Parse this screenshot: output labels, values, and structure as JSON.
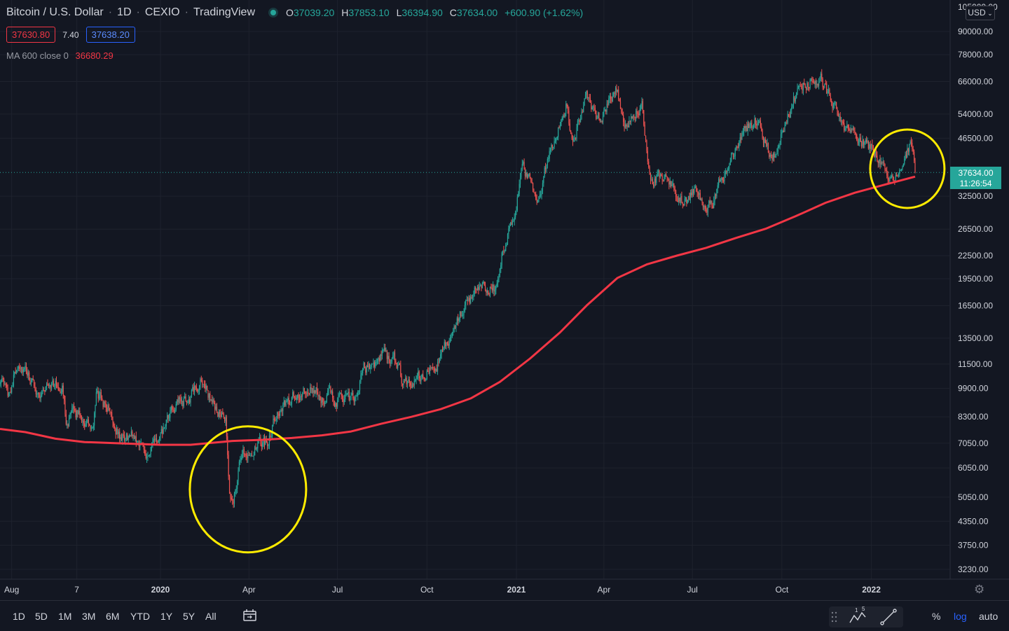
{
  "header": {
    "symbol": "Bitcoin / U.S. Dollar",
    "interval": "1D",
    "exchange": "CEXIO",
    "source": "TradingView",
    "ohlc": {
      "o_label": "O",
      "o": "37039.20",
      "h_label": "H",
      "h": "37853.10",
      "l_label": "L",
      "l": "36394.90",
      "c_label": "C",
      "c": "37634.00",
      "change": "+600.90 (+1.62%)"
    },
    "bid": "37630.80",
    "spread": "7.40",
    "ask": "37638.20",
    "ma_label": "MA 600 close 0",
    "ma_value": "36680.29"
  },
  "currency_button": "USD",
  "last_price": "37634.00",
  "countdown": "11:26:54",
  "price_axis": {
    "top_partial": "105000.00",
    "ticks": [
      90000,
      78000,
      66000,
      54000,
      46500,
      32500,
      26500,
      22500,
      19500,
      16500,
      13500,
      11500,
      9900,
      8300,
      7050,
      6050,
      5050,
      4350,
      3750,
      3230
    ],
    "tick_labels": [
      "90000.00",
      "78000.00",
      "66000.00",
      "54000.00",
      "46500.00",
      "32500.00",
      "26500.00",
      "22500.00",
      "19500.00",
      "16500.00",
      "13500.00",
      "11500.00",
      "9900.00",
      "8300.00",
      "7050.00",
      "6050.00",
      "5050.00",
      "4350.00",
      "3750.00",
      "3230.00"
    ]
  },
  "time_axis": {
    "labels": [
      {
        "text": "Aug",
        "date": "2019-08-01",
        "bold": false
      },
      {
        "text": "7",
        "date": "2019-10-07",
        "bold": false
      },
      {
        "text": "2020",
        "date": "2020-01-01",
        "bold": true
      },
      {
        "text": "Apr",
        "date": "2020-04-01",
        "bold": false
      },
      {
        "text": "Jul",
        "date": "2020-07-01",
        "bold": false
      },
      {
        "text": "Oct",
        "date": "2020-10-01",
        "bold": false
      },
      {
        "text": "2021",
        "date": "2021-01-01",
        "bold": true
      },
      {
        "text": "Apr",
        "date": "2021-04-01",
        "bold": false
      },
      {
        "text": "Jul",
        "date": "2021-07-01",
        "bold": false
      },
      {
        "text": "Oct",
        "date": "2021-10-01",
        "bold": false
      },
      {
        "text": "2022",
        "date": "2022-01-01",
        "bold": true
      }
    ]
  },
  "chart_data": {
    "type": "candlestick",
    "symbol": "BTCUSD",
    "scale": "log",
    "x_range": [
      "2019-07-20",
      "2022-02-15"
    ],
    "ylim": [
      3100,
      105000
    ],
    "price_path": [
      [
        "2019-07-20",
        10500
      ],
      [
        "2019-07-28",
        9500
      ],
      [
        "2019-08-08",
        11800
      ],
      [
        "2019-08-20",
        10300
      ],
      [
        "2019-08-30",
        9600
      ],
      [
        "2019-09-10",
        10300
      ],
      [
        "2019-09-22",
        9900
      ],
      [
        "2019-09-26",
        8200
      ],
      [
        "2019-10-10",
        8500
      ],
      [
        "2019-10-24",
        7500
      ],
      [
        "2019-10-27",
        9500
      ],
      [
        "2019-11-08",
        8800
      ],
      [
        "2019-11-22",
        7200
      ],
      [
        "2019-12-05",
        7400
      ],
      [
        "2019-12-18",
        6700
      ],
      [
        "2020-01-01",
        7200
      ],
      [
        "2020-01-15",
        8800
      ],
      [
        "2020-02-01",
        9400
      ],
      [
        "2020-02-13",
        10400
      ],
      [
        "2020-02-26",
        8800
      ],
      [
        "2020-03-08",
        8000
      ],
      [
        "2020-03-12",
        5000
      ],
      [
        "2020-03-16",
        5000
      ],
      [
        "2020-03-25",
        6700
      ],
      [
        "2020-04-05",
        6800
      ],
      [
        "2020-04-20",
        7100
      ],
      [
        "2020-04-30",
        8800
      ],
      [
        "2020-05-10",
        8800
      ],
      [
        "2020-05-20",
        9500
      ],
      [
        "2020-06-10",
        9700
      ],
      [
        "2020-07-01",
        9200
      ],
      [
        "2020-07-20",
        9200
      ],
      [
        "2020-07-28",
        11000
      ],
      [
        "2020-08-17",
        12200
      ],
      [
        "2020-09-03",
        11500
      ],
      [
        "2020-09-05",
        10200
      ],
      [
        "2020-09-25",
        10700
      ],
      [
        "2020-10-10",
        11300
      ],
      [
        "2020-10-21",
        12900
      ],
      [
        "2020-11-05",
        15500
      ],
      [
        "2020-11-24",
        19000
      ],
      [
        "2020-12-10",
        18400
      ],
      [
        "2020-12-17",
        23000
      ],
      [
        "2020-12-31",
        29000
      ],
      [
        "2021-01-08",
        40000
      ],
      [
        "2021-01-22",
        31000
      ],
      [
        "2021-02-08",
        46000
      ],
      [
        "2021-02-21",
        57000
      ],
      [
        "2021-02-28",
        45000
      ],
      [
        "2021-03-13",
        61000
      ],
      [
        "2021-03-25",
        52000
      ],
      [
        "2021-04-14",
        63500
      ],
      [
        "2021-04-25",
        49000
      ],
      [
        "2021-05-10",
        56500
      ],
      [
        "2021-05-19",
        36000
      ],
      [
        "2021-06-01",
        36500
      ],
      [
        "2021-06-22",
        31500
      ],
      [
        "2021-07-05",
        34000
      ],
      [
        "2021-07-20",
        30000
      ],
      [
        "2021-08-05",
        39000
      ],
      [
        "2021-08-23",
        49500
      ],
      [
        "2021-09-07",
        52000
      ],
      [
        "2021-09-21",
        40500
      ],
      [
        "2021-10-01",
        48000
      ],
      [
        "2021-10-20",
        65000
      ],
      [
        "2021-11-10",
        67500
      ],
      [
        "2021-11-26",
        54000
      ],
      [
        "2021-12-04",
        49000
      ],
      [
        "2021-12-20",
        46500
      ],
      [
        "2022-01-10",
        41500
      ],
      [
        "2022-01-24",
        35000
      ],
      [
        "2022-02-10",
        44500
      ],
      [
        "2022-02-12",
        42000
      ],
      [
        "2022-02-15",
        37634
      ]
    ],
    "series": [
      {
        "name": "MA 600 close 0",
        "type": "line",
        "color": "#f23645",
        "points": [
          [
            "2019-07-20",
            7700
          ],
          [
            "2019-08-15",
            7550
          ],
          [
            "2019-09-15",
            7250
          ],
          [
            "2019-10-15",
            7100
          ],
          [
            "2019-11-15",
            7050
          ],
          [
            "2020-01-01",
            6980
          ],
          [
            "2020-02-01",
            6980
          ],
          [
            "2020-03-15",
            7150
          ],
          [
            "2020-04-15",
            7200
          ],
          [
            "2020-05-15",
            7280
          ],
          [
            "2020-06-15",
            7400
          ],
          [
            "2020-07-15",
            7580
          ],
          [
            "2020-08-15",
            7950
          ],
          [
            "2020-09-15",
            8300
          ],
          [
            "2020-10-15",
            8700
          ],
          [
            "2020-11-15",
            9300
          ],
          [
            "2020-12-15",
            10300
          ],
          [
            "2021-01-15",
            11900
          ],
          [
            "2021-02-15",
            14000
          ],
          [
            "2021-03-15",
            16600
          ],
          [
            "2021-04-15",
            19600
          ],
          [
            "2021-05-15",
            21300
          ],
          [
            "2021-06-15",
            22500
          ],
          [
            "2021-07-15",
            23600
          ],
          [
            "2021-08-15",
            25100
          ],
          [
            "2021-09-15",
            26600
          ],
          [
            "2021-10-15",
            28700
          ],
          [
            "2021-11-15",
            31200
          ],
          [
            "2021-12-15",
            33200
          ],
          [
            "2022-01-15",
            34900
          ],
          [
            "2022-02-15",
            36680.29
          ]
        ]
      }
    ],
    "annotations": [
      {
        "type": "circle",
        "color": "#ffeb00",
        "date": "2020-03-31",
        "price": 5300
      },
      {
        "type": "circle",
        "color": "#ffeb00",
        "date": "2022-02-07",
        "price": 38500
      }
    ]
  },
  "bottom_toolbar": {
    "timeframes": [
      "1D",
      "5D",
      "1M",
      "3M",
      "6M",
      "YTD",
      "1Y",
      "5Y",
      "All"
    ],
    "right": {
      "percent": "%",
      "log": "log",
      "auto": "auto"
    }
  },
  "colors": {
    "up": "#26a69a",
    "down": "#ef5350",
    "ma": "#f23645",
    "annotation": "#ffeb00",
    "accent": "#2962ff",
    "background": "#131722"
  }
}
